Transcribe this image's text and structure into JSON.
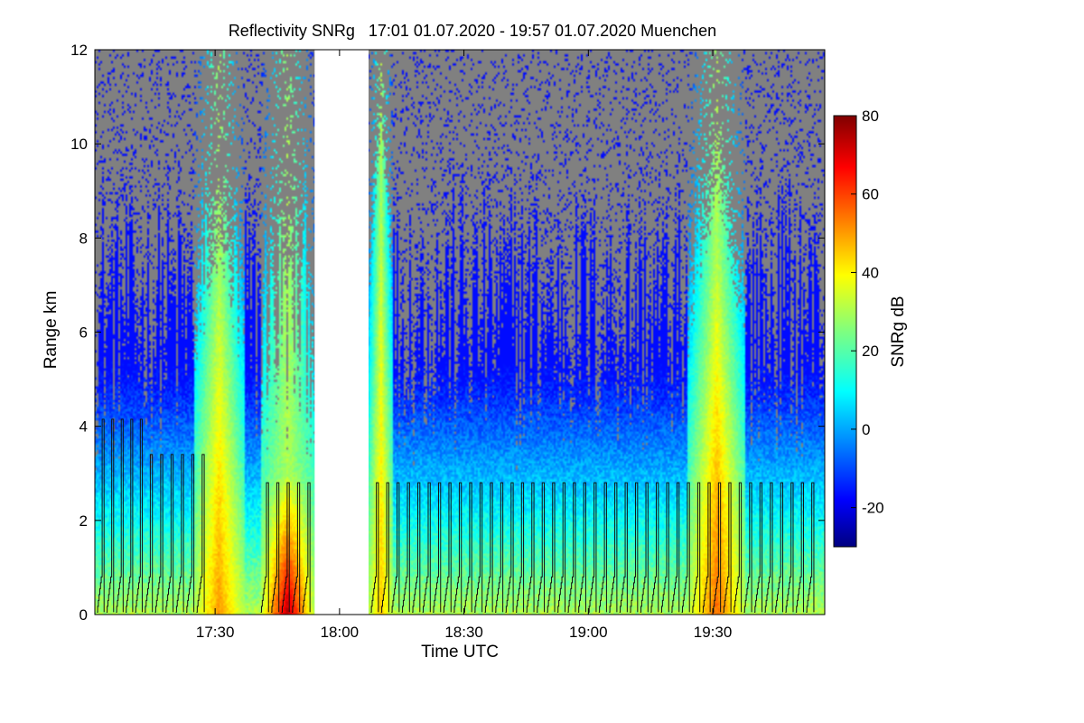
{
  "chart_data": {
    "type": "heatmap",
    "title": "Reflectivity SNRg   17:01 01.07.2020 - 19:57 01.07.2020 Muenchen",
    "xlabel": "Time UTC",
    "ylabel": "Range km",
    "x_range_minutes_utc": [
      1021,
      1197
    ],
    "y_range_km": [
      0,
      12
    ],
    "x_ticks": [
      {
        "value": 1050,
        "label": "17:30"
      },
      {
        "value": 1080,
        "label": "18:00"
      },
      {
        "value": 1110,
        "label": "18:30"
      },
      {
        "value": 1140,
        "label": "19:00"
      },
      {
        "value": 1170,
        "label": "19:30"
      }
    ],
    "y_ticks": [
      {
        "value": 0,
        "label": "0"
      },
      {
        "value": 2,
        "label": "2"
      },
      {
        "value": 4,
        "label": "4"
      },
      {
        "value": 6,
        "label": "6"
      },
      {
        "value": 8,
        "label": "8"
      },
      {
        "value": 10,
        "label": "10"
      },
      {
        "value": 12,
        "label": "12"
      }
    ],
    "colorbar": {
      "label": "SNRg dB",
      "range": [
        -30,
        80
      ],
      "ticks": [
        {
          "value": -20,
          "label": "-20"
        },
        {
          "value": 0,
          "label": "0"
        },
        {
          "value": 20,
          "label": "20"
        },
        {
          "value": 40,
          "label": "40"
        },
        {
          "value": 60,
          "label": "60"
        },
        {
          "value": 80,
          "label": "80"
        }
      ],
      "colormap": "jet"
    },
    "no_signal_color": "#808080",
    "data_gap_minutes_utc": [
      1074,
      1087
    ],
    "strong_echo_periods": [
      {
        "start_min": 1045,
        "end_min": 1057,
        "max_height_km": 7,
        "peak_snr_db": 50
      },
      {
        "start_min": 1061,
        "end_min": 1074,
        "max_height_km": 3,
        "peak_snr_db": 75
      },
      {
        "start_min": 1087,
        "end_min": 1093,
        "max_height_km": 9,
        "peak_snr_db": 45
      },
      {
        "start_min": 1164,
        "end_min": 1178,
        "max_height_km": 8,
        "peak_snr_db": 55
      }
    ],
    "scan_pattern_peaks_km": [
      4.15,
      3.4,
      2.8
    ]
  }
}
